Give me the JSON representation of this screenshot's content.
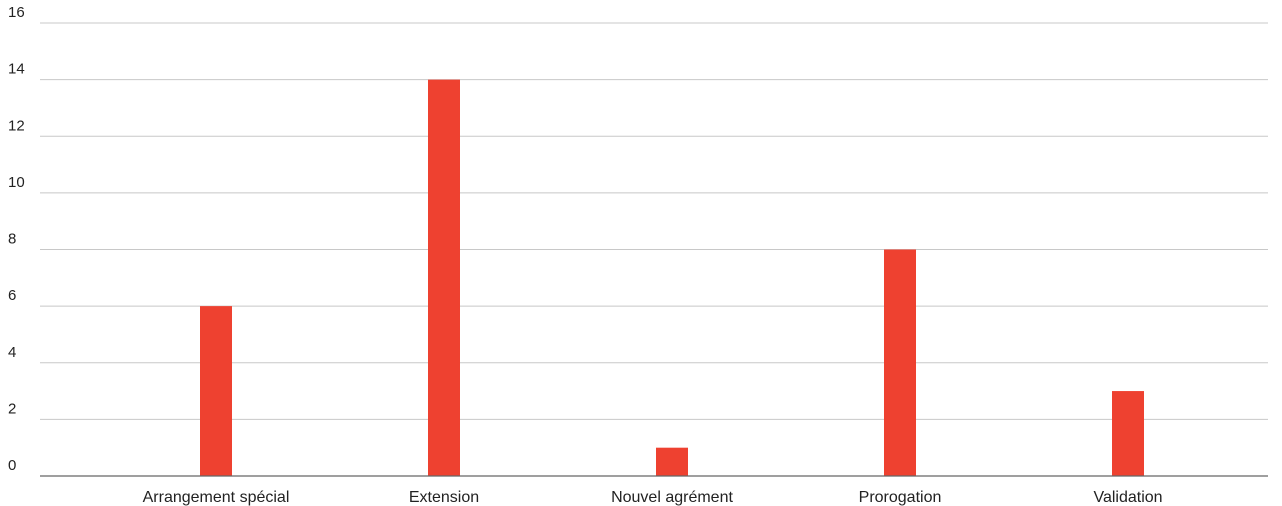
{
  "chart_data": {
    "type": "bar",
    "title": "",
    "xlabel": "",
    "ylabel": "",
    "categories": [
      "Arrangement spécial",
      "Extension",
      "Nouvel agrément",
      "Prorogation",
      "Validation"
    ],
    "series": [
      {
        "values": [
          6,
          14,
          1,
          8,
          3
        ],
        "color": "#ee4130"
      }
    ],
    "ylim": [
      0,
      16
    ],
    "yticks": [
      0,
      2,
      4,
      6,
      8,
      10,
      12,
      14,
      16
    ],
    "grid": true,
    "legend": "none",
    "colors": {
      "bar": "#ee4130",
      "grid": "#c8c8c8",
      "axis": "#666666",
      "text": "#222222"
    }
  }
}
